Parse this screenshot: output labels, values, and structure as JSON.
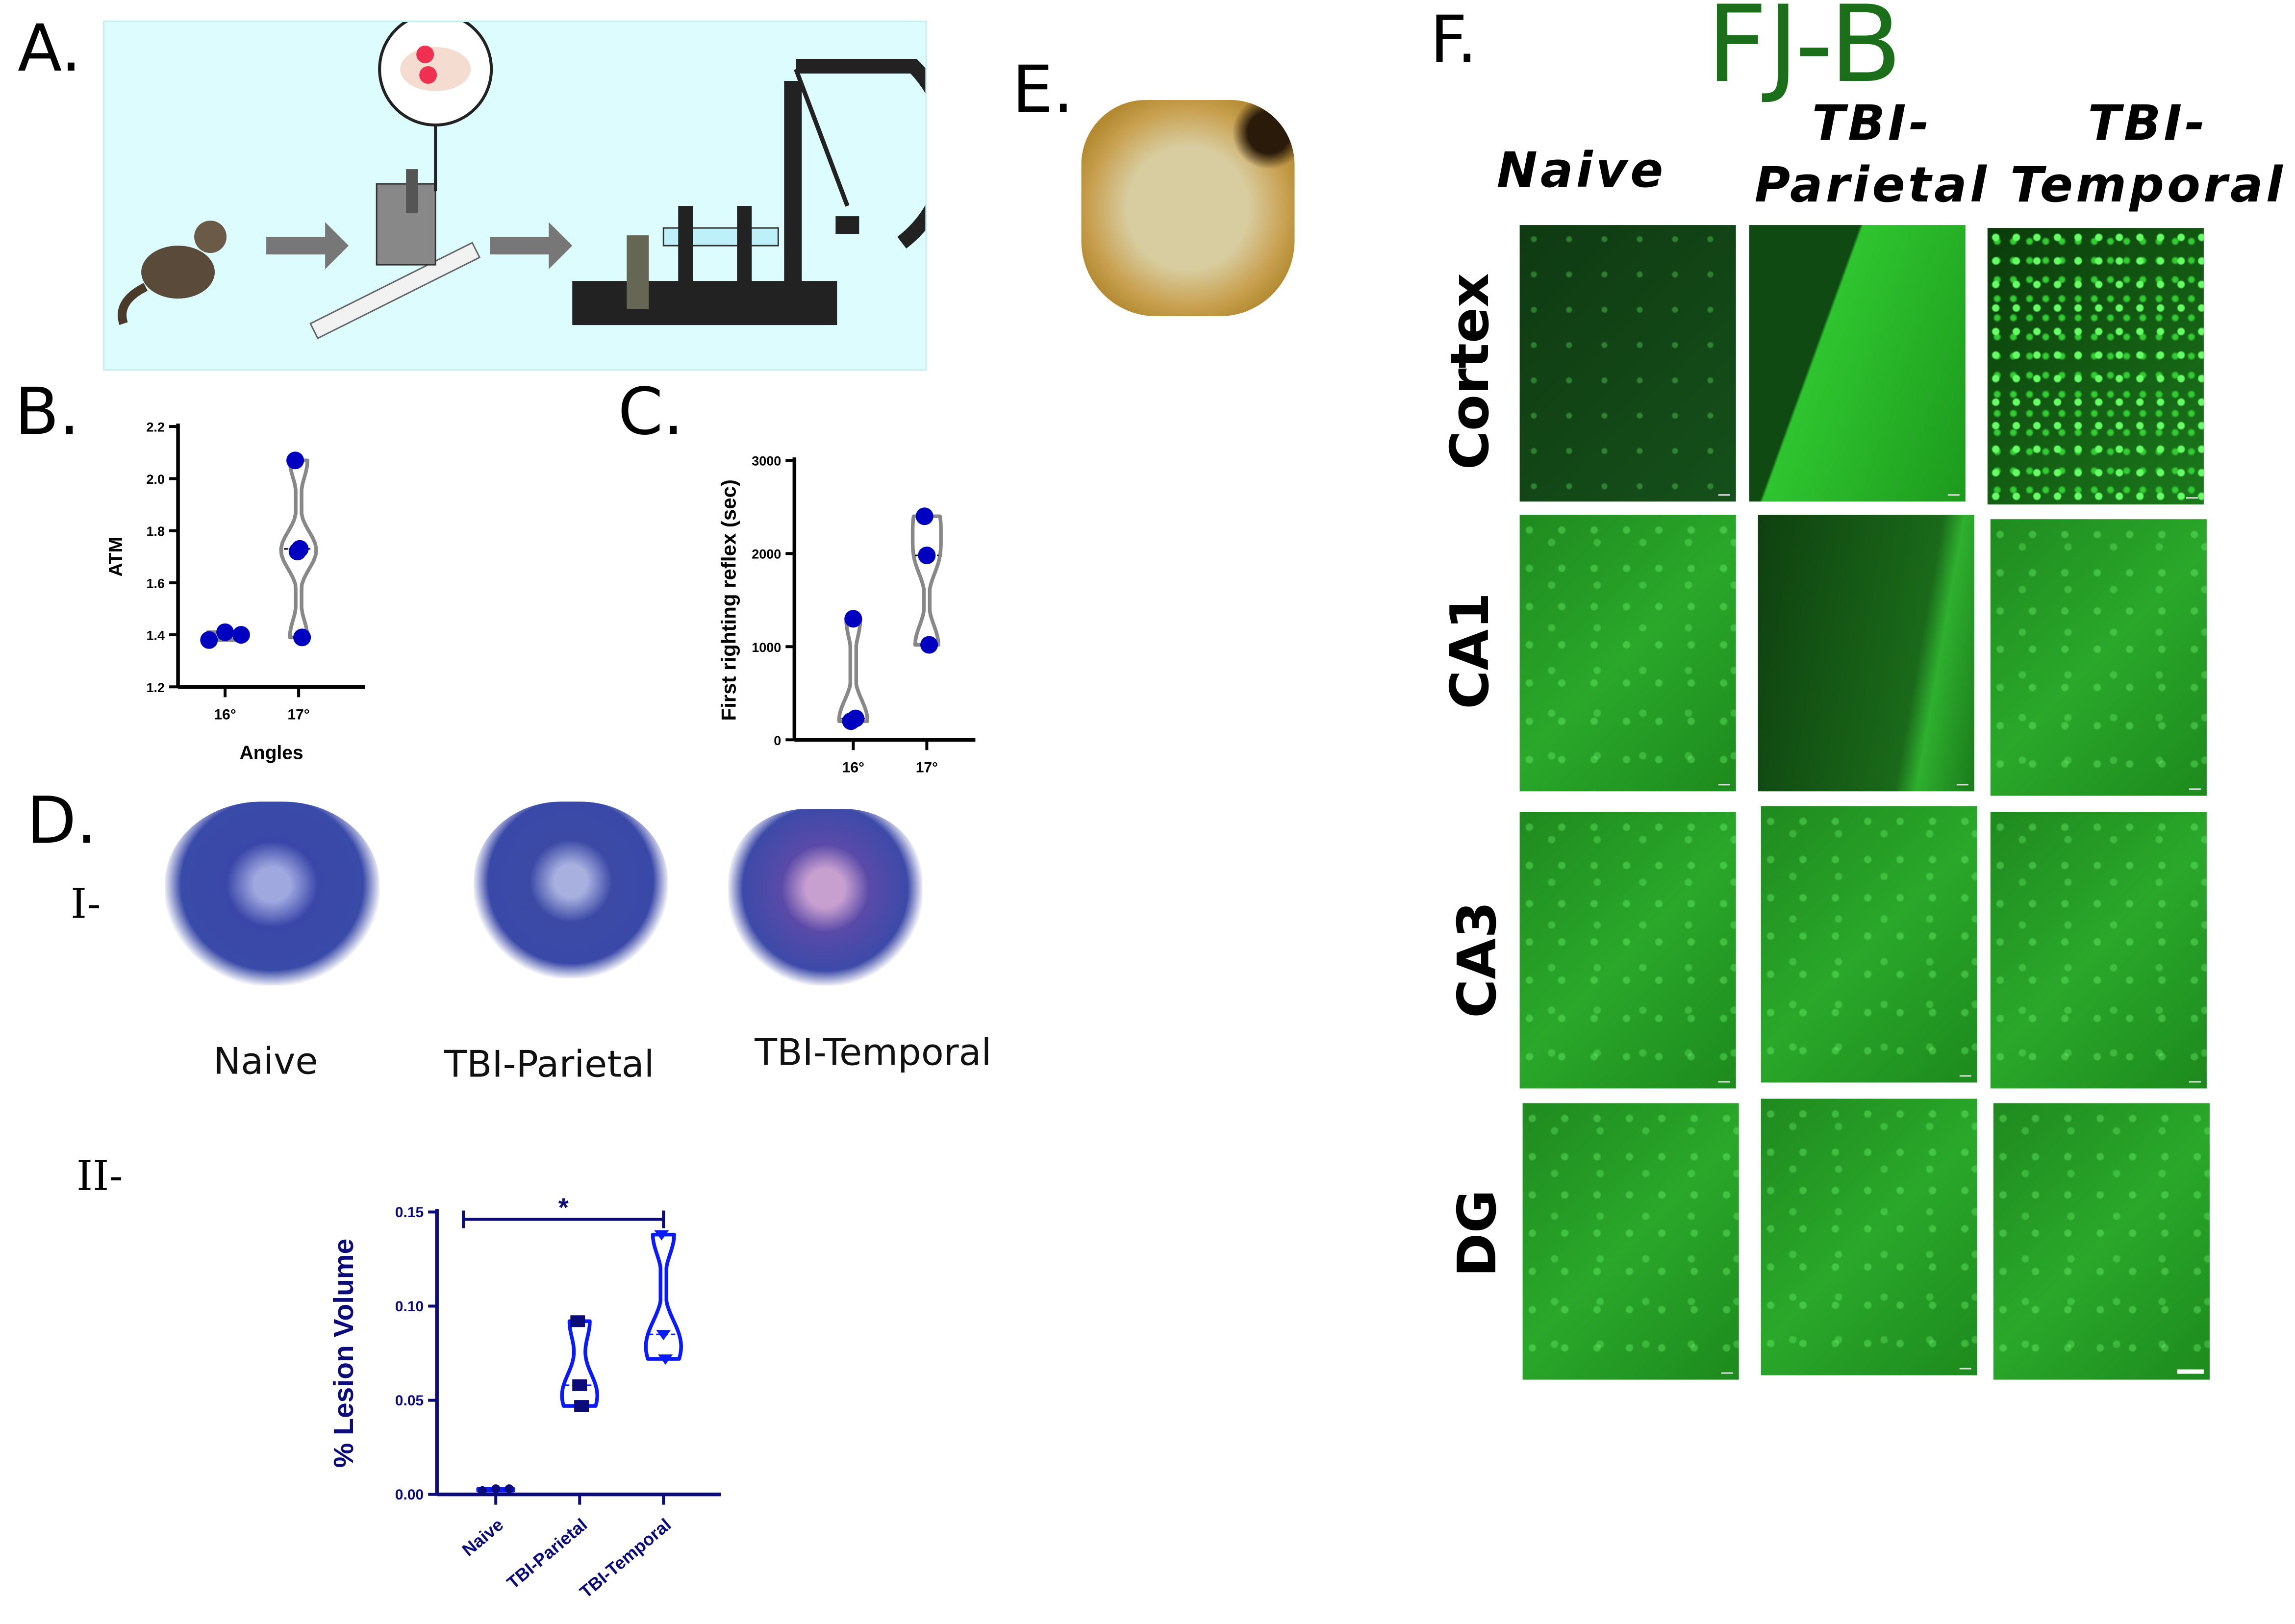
{
  "panels": {
    "a": "A.",
    "b": "B.",
    "c": "C.",
    "d": "D.",
    "e": "E.",
    "f": "F."
  },
  "panel_d": {
    "sub_i": "I-",
    "sub_ii": "II-",
    "captions": [
      "Naive",
      "TBI-Parietal",
      "TBI-Temporal"
    ]
  },
  "panel_f": {
    "title": "FJ-B",
    "columns": [
      {
        "l1": "Naive",
        "l2": ""
      },
      {
        "l1": "TBI-",
        "l2": "Parietal"
      },
      {
        "l1": "TBI-",
        "l2": "Temporal"
      }
    ],
    "rows": [
      "Cortex",
      "CA1",
      "CA3",
      "DG"
    ]
  },
  "colors": {
    "b_points": "#0000c0",
    "violin_gray": "#888888",
    "lesion_dark": "#0b0b7a",
    "lesion_blue": "#0a1aff",
    "fjb_green": "#1b6f1b",
    "panel_a_bg": "#dcfcfd"
  },
  "chart_data": [
    {
      "id": "b",
      "type": "violin",
      "title": "",
      "xlabel": "Angles",
      "ylabel": "ATM",
      "categories": [
        "16°",
        "17°"
      ],
      "ylim": [
        1.2,
        2.2
      ],
      "yticks": [
        "1.2",
        "1.4",
        "1.6",
        "1.8",
        "2.0",
        "2.2"
      ],
      "ytick_values": [
        1.2,
        1.4,
        1.6,
        1.8,
        2.0,
        2.2
      ],
      "series": [
        {
          "name": "16°",
          "values": [
            1.38,
            1.41,
            1.4
          ]
        },
        {
          "name": "17°",
          "values": [
            2.07,
            1.72,
            1.73,
            1.39
          ]
        }
      ]
    },
    {
      "id": "c",
      "type": "violin",
      "title": "",
      "xlabel": "",
      "ylabel": "First righting reflex (sec)",
      "categories": [
        "16°",
        "17°"
      ],
      "ylim": [
        0,
        3000
      ],
      "yticks": [
        "0",
        "1000",
        "2000",
        "3000"
      ],
      "ytick_values": [
        0,
        1000,
        2000,
        3000
      ],
      "series": [
        {
          "name": "16°",
          "values": [
            200,
            1300,
            230
          ]
        },
        {
          "name": "17°",
          "values": [
            2400,
            1980,
            1020
          ]
        }
      ]
    },
    {
      "id": "d2",
      "type": "violin",
      "title": "",
      "xlabel": "",
      "ylabel": "% Lesion Volume",
      "categories": [
        "Naive",
        "TBI-Parietal",
        "TBI-Temporal"
      ],
      "ylim": [
        0,
        0.15
      ],
      "yticks": [
        "0.00",
        "0.05",
        "0.10",
        "0.15"
      ],
      "ytick_values": [
        0,
        0.05,
        0.1,
        0.15
      ],
      "series": [
        {
          "name": "Naive",
          "values": [
            0.002,
            0.003,
            0.003
          ]
        },
        {
          "name": "TBI-Parietal",
          "values": [
            0.092,
            0.058,
            0.047
          ]
        },
        {
          "name": "TBI-Temporal",
          "values": [
            0.138,
            0.085,
            0.072
          ]
        }
      ],
      "annotation": {
        "text": "*",
        "from": "Naive",
        "to": "TBI-Temporal"
      }
    }
  ]
}
